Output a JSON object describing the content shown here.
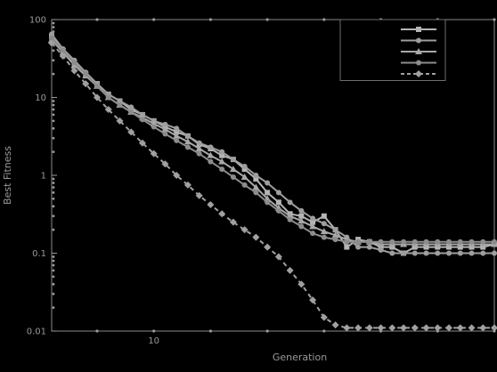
{
  "chart_data": {
    "type": "line",
    "title": "",
    "xlabel": "Generation",
    "ylabel": "Best Fitness",
    "x_scale": "linear",
    "y_scale": "log",
    "xlim": [
      1,
      40
    ],
    "ylim": [
      0.01,
      100
    ],
    "x_ticks": [
      {
        "value": 10,
        "label": "10"
      }
    ],
    "y_ticks": [
      {
        "value": 0.01,
        "label": "0.01"
      },
      {
        "value": 0.1,
        "label": "0.1"
      },
      {
        "value": 1,
        "label": "1"
      },
      {
        "value": 10,
        "label": "10"
      },
      {
        "value": 100,
        "label": "100"
      }
    ],
    "grid": false,
    "legend_position": "top-right",
    "series": [
      {
        "color": "#b4b4b4",
        "dash": "solid",
        "marker": "square",
        "x": [
          1,
          2,
          3,
          4,
          5,
          6,
          7,
          8,
          9,
          10,
          11,
          12,
          13,
          14,
          15,
          16,
          17,
          18,
          19,
          20,
          21,
          22,
          23,
          24,
          25,
          26,
          27,
          28,
          29,
          30,
          31,
          32,
          33,
          34,
          35,
          36,
          37,
          38,
          39,
          40
        ],
        "y": [
          60,
          40,
          28,
          20,
          15,
          11,
          9,
          7,
          6,
          5,
          4.2,
          3.6,
          3.2,
          2.5,
          2.2,
          1.8,
          1.6,
          1.2,
          0.9,
          0.6,
          0.45,
          0.32,
          0.3,
          0.25,
          0.3,
          0.2,
          0.12,
          0.15,
          0.14,
          0.12,
          0.12,
          0.1,
          0.12,
          0.12,
          0.12,
          0.12,
          0.12,
          0.12,
          0.12,
          0.13
        ]
      },
      {
        "color": "#9e9e9e",
        "dash": "solid",
        "marker": "circle",
        "x": [
          1,
          2,
          3,
          4,
          5,
          6,
          7,
          8,
          9,
          10,
          11,
          12,
          13,
          14,
          15,
          16,
          17,
          18,
          19,
          20,
          21,
          22,
          23,
          24,
          25,
          26,
          27,
          28,
          29,
          30,
          31,
          32,
          33,
          34,
          35,
          36,
          37,
          38,
          39,
          40
        ],
        "y": [
          65,
          42,
          30,
          21,
          15,
          11,
          9,
          7.5,
          6,
          5,
          4.5,
          4,
          3.2,
          2.6,
          2.3,
          2,
          1.6,
          1.3,
          1.0,
          0.8,
          0.6,
          0.45,
          0.35,
          0.28,
          0.24,
          0.2,
          0.16,
          0.12,
          0.12,
          0.11,
          0.1,
          0.1,
          0.1,
          0.1,
          0.1,
          0.1,
          0.1,
          0.1,
          0.1,
          0.1
        ]
      },
      {
        "color": "#a8a8a8",
        "dash": "solid",
        "marker": "triangle",
        "x": [
          1,
          2,
          3,
          4,
          5,
          6,
          7,
          8,
          9,
          10,
          11,
          12,
          13,
          14,
          15,
          16,
          17,
          18,
          19,
          20,
          21,
          22,
          23,
          24,
          25,
          26,
          27,
          28,
          29,
          30,
          31,
          32,
          33,
          34,
          35,
          36,
          37,
          38,
          39,
          40
        ],
        "y": [
          55,
          38,
          26,
          19,
          14,
          10,
          8,
          6.5,
          5.5,
          4.6,
          3.9,
          3.2,
          2.7,
          2.2,
          1.8,
          1.5,
          1.2,
          0.95,
          0.7,
          0.5,
          0.38,
          0.3,
          0.26,
          0.22,
          0.19,
          0.17,
          0.15,
          0.14,
          0.14,
          0.13,
          0.13,
          0.13,
          0.13,
          0.13,
          0.13,
          0.13,
          0.13,
          0.13,
          0.13,
          0.13
        ]
      },
      {
        "color": "#8c8c8c",
        "dash": "solid",
        "marker": "circle",
        "x": [
          1,
          2,
          3,
          4,
          5,
          6,
          7,
          8,
          9,
          10,
          11,
          12,
          13,
          14,
          15,
          16,
          17,
          18,
          19,
          20,
          21,
          22,
          23,
          24,
          25,
          26,
          27,
          28,
          29,
          30,
          31,
          32,
          33,
          34,
          35,
          36,
          37,
          38,
          39,
          40
        ],
        "y": [
          58,
          40,
          28,
          20,
          14,
          10,
          8,
          6.5,
          5.2,
          4.2,
          3.4,
          2.8,
          2.3,
          1.9,
          1.5,
          1.2,
          0.95,
          0.75,
          0.6,
          0.45,
          0.35,
          0.27,
          0.22,
          0.18,
          0.16,
          0.15,
          0.14,
          0.14,
          0.14,
          0.14,
          0.14,
          0.14,
          0.14,
          0.14,
          0.14,
          0.14,
          0.14,
          0.14,
          0.14,
          0.14
        ]
      },
      {
        "color": "#a0a0a0",
        "dash": "dashed",
        "marker": "diamond",
        "x": [
          1,
          2,
          3,
          4,
          5,
          6,
          7,
          8,
          9,
          10,
          11,
          12,
          13,
          14,
          15,
          16,
          17,
          18,
          19,
          20,
          21,
          22,
          23,
          24,
          25,
          26,
          27,
          28,
          29,
          30,
          31,
          32,
          33,
          34,
          35,
          36,
          37,
          38,
          39,
          40
        ],
        "y": [
          50,
          34,
          22,
          15,
          10,
          7,
          5,
          3.6,
          2.6,
          1.9,
          1.4,
          1.0,
          0.75,
          0.55,
          0.42,
          0.32,
          0.25,
          0.2,
          0.16,
          0.12,
          0.09,
          0.06,
          0.04,
          0.025,
          0.015,
          0.012,
          0.011,
          0.011,
          0.011,
          0.011,
          0.011,
          0.011,
          0.011,
          0.011,
          0.011,
          0.011,
          0.011,
          0.011,
          0.011,
          0.011
        ]
      }
    ]
  }
}
